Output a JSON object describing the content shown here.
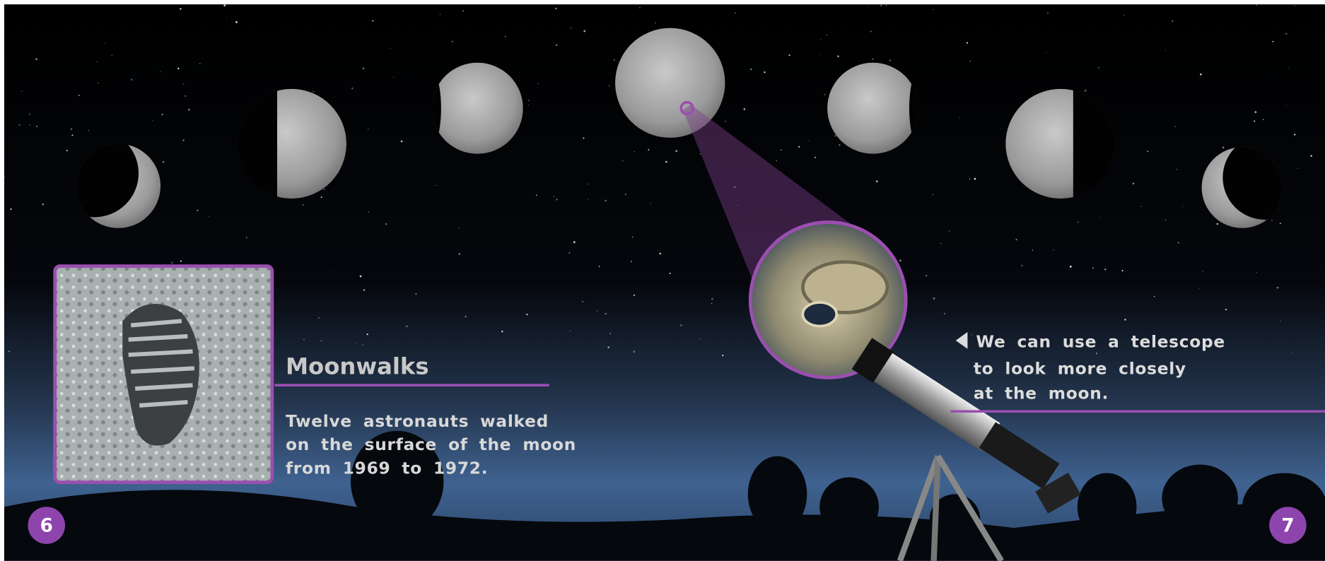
{
  "left_page": {
    "heading": "Moonwalks",
    "body": [
      "Twelve astronauts walked",
      "on the surface of the moon",
      "from 1969 to 1972."
    ],
    "page_number": 6
  },
  "right_page": {
    "caption": [
      "We can use a telescope",
      "to look more closely",
      "at the moon."
    ],
    "page_number": 7
  }
}
